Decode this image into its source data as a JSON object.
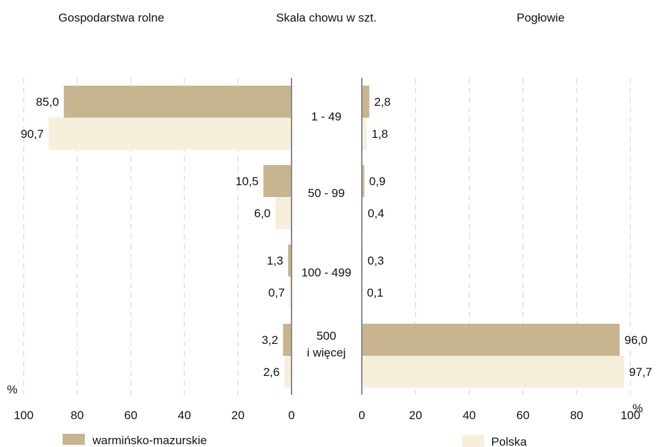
{
  "chart_data": {
    "type": "bar",
    "orientation": "horizontal",
    "center_title": "Skala chowu w szt.",
    "categories": [
      "1 - 49",
      "50 - 99",
      "100 - 499",
      "500\ni więcej"
    ],
    "unit_label": "%",
    "grid": true,
    "xlim": [
      0,
      100
    ],
    "xticks": [
      0,
      20,
      40,
      60,
      80,
      100
    ],
    "panels": [
      {
        "title": "Gospodarstwa rolne",
        "direction": "reversed",
        "series": [
          {
            "name": "warmińsko-mazurskie",
            "color": "#c8b48e",
            "values": [
              85.0,
              10.5,
              1.3,
              3.2
            ],
            "labels": [
              "85,0",
              "10,5",
              "1,3",
              "3,2"
            ]
          },
          {
            "name": "Polska",
            "color": "#f5efdc",
            "values": [
              90.7,
              6.0,
              0.7,
              2.6
            ],
            "labels": [
              "90,7",
              "6,0",
              "0,7",
              "2,6"
            ]
          }
        ]
      },
      {
        "title": "Pogłowie",
        "direction": "normal",
        "series": [
          {
            "name": "warmińsko-mazurskie",
            "color": "#c8b48e",
            "values": [
              2.8,
              0.9,
              0.3,
              96.0
            ],
            "labels": [
              "2,8",
              "0,9",
              "0,3",
              "96,0"
            ]
          },
          {
            "name": "Polska",
            "color": "#f5efdc",
            "values": [
              1.8,
              0.4,
              0.1,
              97.7
            ],
            "labels": [
              "1,8",
              "0,4",
              "0,1",
              "97,7"
            ]
          }
        ]
      }
    ],
    "legend": [
      {
        "name": "warmińsko-mazurskie",
        "color": "#c8b48e",
        "position": "bottom-left"
      },
      {
        "name": "Polska",
        "color": "#f5efdc",
        "position": "bottom-right"
      }
    ]
  }
}
